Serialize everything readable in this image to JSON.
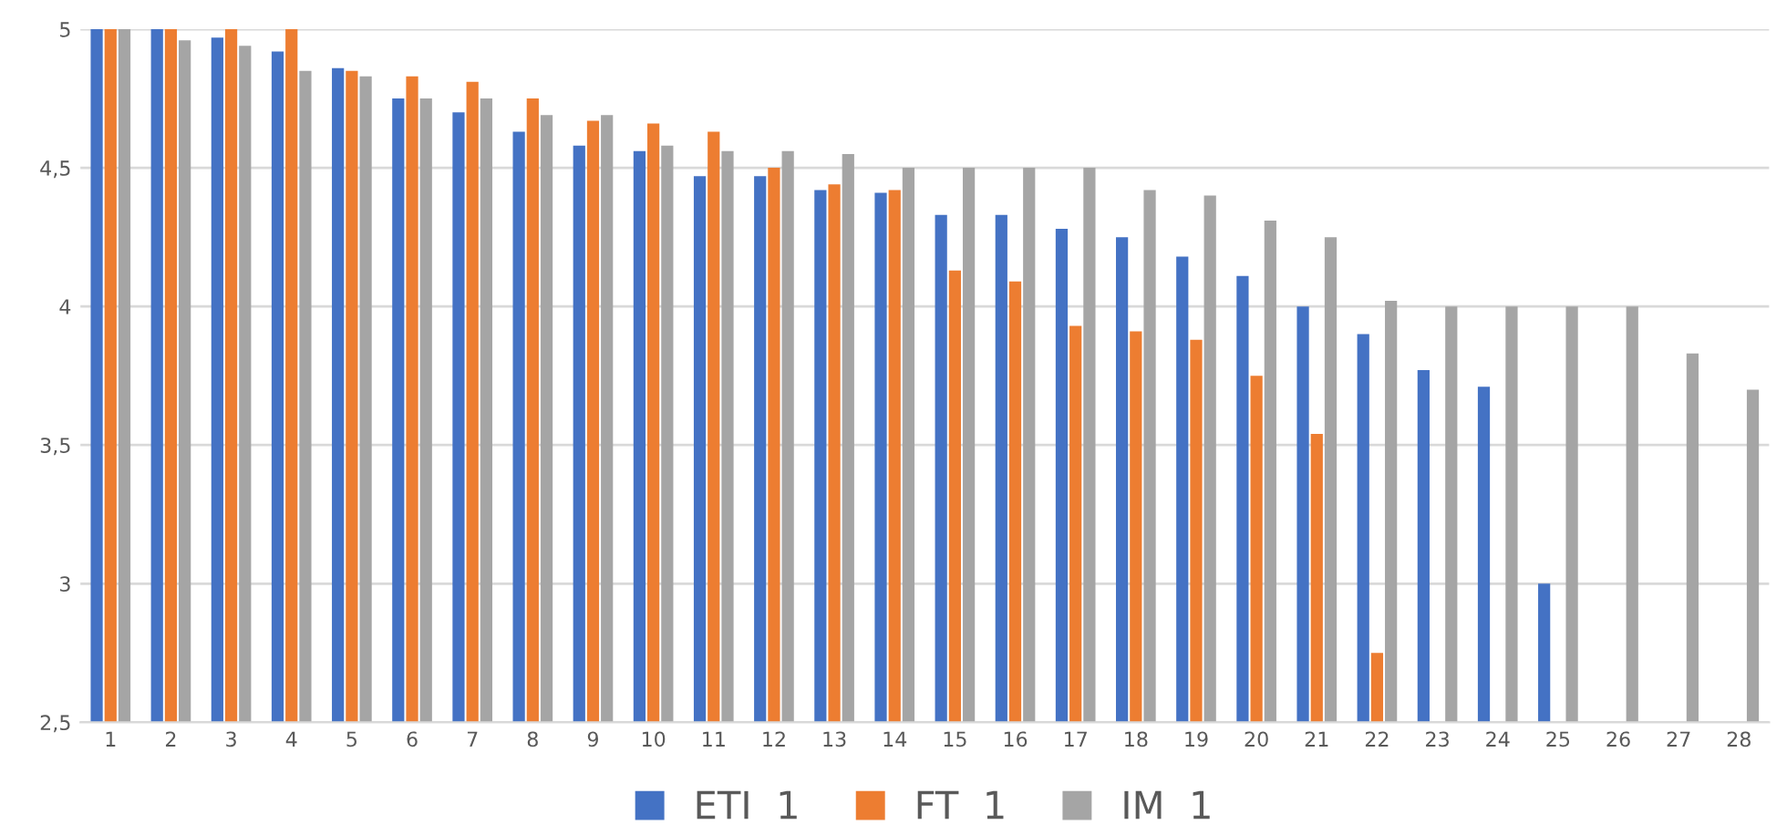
{
  "chart_data": {
    "type": "bar",
    "categories": [
      "1",
      "2",
      "3",
      "4",
      "5",
      "6",
      "7",
      "8",
      "9",
      "10",
      "11",
      "12",
      "13",
      "14",
      "15",
      "16",
      "17",
      "18",
      "19",
      "20",
      "21",
      "22",
      "23",
      "24",
      "25",
      "26",
      "27",
      "28"
    ],
    "series": [
      {
        "name": "ETI  1",
        "color": "#4472c4",
        "values": [
          5,
          5,
          4.97,
          4.92,
          4.86,
          4.75,
          4.7,
          4.63,
          4.58,
          4.56,
          4.47,
          4.47,
          4.42,
          4.41,
          4.33,
          4.33,
          4.28,
          4.25,
          4.18,
          4.11,
          4.0,
          3.9,
          3.77,
          3.71,
          3.0,
          null,
          null,
          null
        ]
      },
      {
        "name": "FT  1",
        "color": "#ed7d31",
        "values": [
          5,
          5,
          5,
          5,
          4.85,
          4.83,
          4.81,
          4.75,
          4.67,
          4.66,
          4.63,
          4.5,
          4.44,
          4.42,
          4.13,
          4.09,
          3.93,
          3.91,
          3.88,
          3.75,
          3.54,
          2.75,
          null,
          null,
          null,
          null,
          null,
          null
        ]
      },
      {
        "name": "IM  1",
        "color": "#a5a5a5",
        "values": [
          5,
          4.96,
          4.94,
          4.85,
          4.83,
          4.75,
          4.75,
          4.69,
          4.69,
          4.58,
          4.56,
          4.56,
          4.55,
          4.5,
          4.5,
          4.5,
          4.5,
          4.42,
          4.4,
          4.31,
          4.25,
          4.02,
          4.0,
          4.0,
          4.0,
          4.0,
          3.83,
          3.7
        ]
      }
    ],
    "ylim": [
      2.5,
      5
    ],
    "yticks": [
      {
        "value": 2.5,
        "label": "2,5"
      },
      3,
      {
        "value": 3.5,
        "label": "3,5"
      },
      4,
      {
        "value": 4.5,
        "label": "4,5"
      },
      5
    ],
    "grid": "y",
    "legend": "bottom"
  }
}
